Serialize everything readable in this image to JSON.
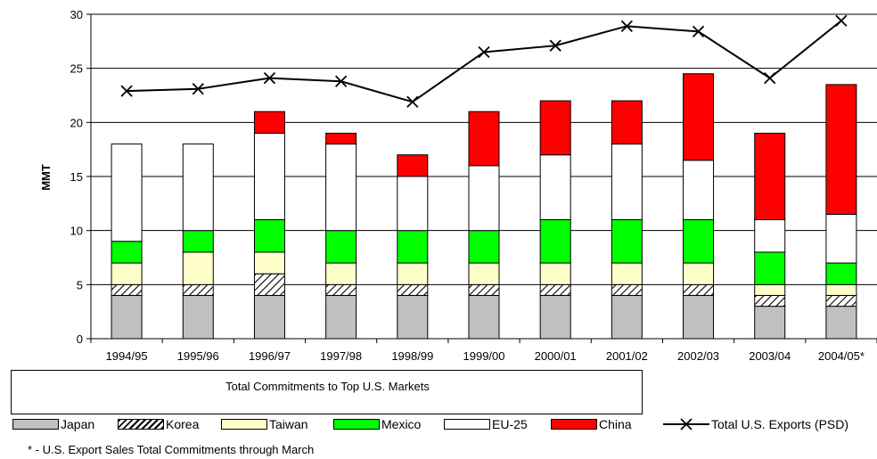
{
  "chart_data": {
    "type": "bar",
    "stacked": true,
    "ylabel": "MMT",
    "ylim": [
      0,
      30
    ],
    "yticks": [
      0,
      5,
      10,
      15,
      20,
      25,
      30
    ],
    "grid": true,
    "categories": [
      "1994/95",
      "1995/96",
      "1996/97",
      "1997/98",
      "1998/99",
      "1999/00",
      "2000/01",
      "2001/02",
      "2002/03",
      "2003/04",
      "2004/05*"
    ],
    "series": [
      {
        "name": "Japan",
        "color": "#c0c0c0",
        "pattern": "solid",
        "values": [
          4,
          4,
          4,
          4,
          4,
          4,
          4,
          4,
          4,
          3,
          3
        ]
      },
      {
        "name": "Korea",
        "color": "#ffffff",
        "pattern": "diagonal-hatch",
        "values": [
          1,
          1,
          2,
          1,
          1,
          1,
          1,
          1,
          1,
          1,
          1
        ]
      },
      {
        "name": "Taiwan",
        "color": "#ffffcc",
        "pattern": "solid",
        "values": [
          2,
          3,
          2,
          2,
          2,
          2,
          2,
          2,
          2,
          1,
          1
        ]
      },
      {
        "name": "Mexico",
        "color": "#00ff00",
        "pattern": "solid",
        "values": [
          2,
          2,
          3,
          3,
          3,
          3,
          4,
          4,
          4,
          3,
          2
        ]
      },
      {
        "name": "EU-25",
        "color": "#ffffff",
        "pattern": "solid",
        "values": [
          9,
          8,
          8,
          8,
          5,
          6,
          6,
          7,
          5.5,
          3,
          4.5
        ]
      },
      {
        "name": "China",
        "color": "#ff0000",
        "pattern": "solid",
        "values": [
          0,
          0,
          2,
          1,
          2,
          5,
          5,
          4,
          8,
          8,
          12
        ]
      }
    ],
    "line_series": {
      "name": "Total U.S. Exports (PSD)",
      "values": [
        22.9,
        23.1,
        24.1,
        23.8,
        21.9,
        26.5,
        27.1,
        28.9,
        28.4,
        24.1,
        29.4
      ]
    },
    "legend_title": "Total Commitments to Top U.S. Markets",
    "legend_position": "bottom",
    "footnote": "* - U.S. Export Sales Total Commitments through March"
  }
}
